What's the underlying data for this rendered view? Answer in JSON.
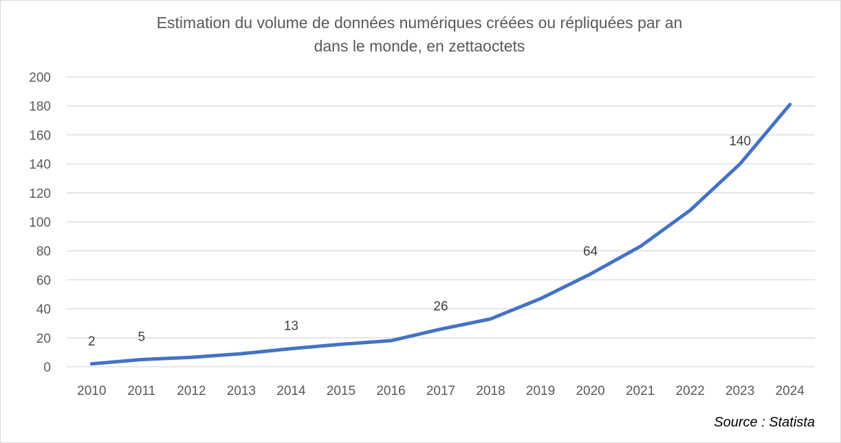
{
  "chart_data": {
    "type": "line",
    "title_line1": "Estimation du volume de données numériques créées ou répliquées par an",
    "title_line2": "dans le monde, en zettaoctets",
    "xlabel": "",
    "ylabel": "",
    "ylim": [
      0,
      200
    ],
    "yticks": [
      "0",
      "20",
      "40",
      "60",
      "80",
      "100",
      "120",
      "140",
      "160",
      "180",
      "200"
    ],
    "ytick_values": [
      0,
      20,
      40,
      60,
      80,
      100,
      120,
      140,
      160,
      180,
      200
    ],
    "categories": [
      "2010",
      "2011",
      "2012",
      "2013",
      "2014",
      "2015",
      "2016",
      "2017",
      "2018",
      "2019",
      "2020",
      "2021",
      "2022",
      "2023",
      "2024"
    ],
    "series": [
      {
        "values": [
          2,
          5,
          6.5,
          9,
          12.5,
          15.5,
          18,
          26,
          33,
          47,
          64,
          83,
          108,
          140,
          181
        ]
      }
    ],
    "data_labels": [
      {
        "index": 0,
        "text": "2"
      },
      {
        "index": 1,
        "text": "5"
      },
      {
        "index": 4,
        "text": "13"
      },
      {
        "index": 7,
        "text": "26"
      },
      {
        "index": 10,
        "text": "64"
      },
      {
        "index": 13,
        "text": "140"
      }
    ],
    "grid": true,
    "legend": "none",
    "line_color": "#4472c4",
    "grid_color": "#d9d9d9",
    "tick_color": "#595959"
  },
  "source": "Source : Statista"
}
